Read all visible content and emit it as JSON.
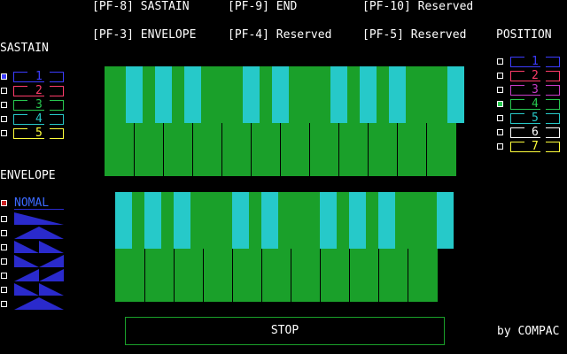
{
  "func_keys": {
    "row1": [
      "[PF-8] SASTAIN",
      "[PF-9] END",
      "[PF-10] Reserved"
    ],
    "row2": [
      "[PF-3] ENVELOPE",
      "[PF-4] Reserved",
      "[PF-5] Reserved"
    ]
  },
  "sastain": {
    "title": "SASTAIN",
    "items": [
      {
        "num": "1",
        "color": "#3c3cff",
        "selected": true
      },
      {
        "num": "2",
        "color": "#ff3c6a",
        "selected": false
      },
      {
        "num": "3",
        "color": "#28c850",
        "selected": false
      },
      {
        "num": "4",
        "color": "#28c8c8",
        "selected": false
      },
      {
        "num": "5",
        "color": "#ffff3c",
        "selected": false
      }
    ]
  },
  "envelope": {
    "title": "ENVELOPE",
    "selected_label": "NOMAL",
    "shapes_count": 7
  },
  "position": {
    "title": "POSITION",
    "items": [
      {
        "num": "1",
        "color": "#3c3cff",
        "selected": false
      },
      {
        "num": "2",
        "color": "#ff3c6a",
        "selected": false
      },
      {
        "num": "3",
        "color": "#c83cc8",
        "selected": false
      },
      {
        "num": "4",
        "color": "#28c850",
        "selected": true
      },
      {
        "num": "5",
        "color": "#28c8c8",
        "selected": false
      },
      {
        "num": "6",
        "color": "#ffffff",
        "selected": false
      },
      {
        "num": "7",
        "color": "#ffff3c",
        "selected": false
      }
    ]
  },
  "stop_label": "STOP",
  "credit": "by COMPAC",
  "colors": {
    "green": "#1aa02a",
    "cyan": "#26c9c9",
    "blue": "#2a2acc",
    "red": "#cc2222"
  }
}
